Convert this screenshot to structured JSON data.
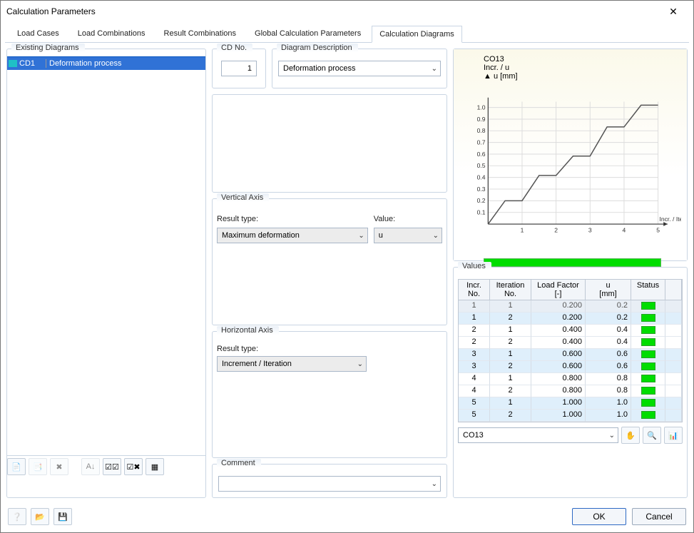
{
  "window": {
    "title": "Calculation Parameters"
  },
  "tabs": {
    "items": [
      "Load Cases",
      "Load Combinations",
      "Result Combinations",
      "Global Calculation Parameters",
      "Calculation Diagrams"
    ],
    "active_index": 4
  },
  "left": {
    "legend": "Existing Diagrams",
    "rows": [
      {
        "id": "CD1",
        "name": "Deformation process",
        "swatch_color": "#1fc0c6"
      }
    ]
  },
  "cdno": {
    "legend": "CD No.",
    "value": "1"
  },
  "desc": {
    "legend": "Diagram Description",
    "value": "Deformation process"
  },
  "vaxis": {
    "legend": "Vertical Axis",
    "result_type_label": "Result type:",
    "value_label": "Value:",
    "result_type": "Maximum deformation",
    "value": "u"
  },
  "haxis": {
    "legend": "Horizontal Axis",
    "result_type_label": "Result type:",
    "result_type": "Increment / Iteration"
  },
  "comment": {
    "legend": "Comment",
    "value": ""
  },
  "chart": {
    "type": "line-step",
    "title": "CO13",
    "subtitle": "Incr. / u",
    "y_axis_label": "u [mm]",
    "x_axis_label": "Incr. / Iter.",
    "xlim": [
      0,
      5
    ],
    "xtick_step": 1,
    "ylim": [
      0,
      1.05
    ],
    "yticks": [
      0.1,
      0.2,
      0.3,
      0.4,
      0.5,
      0.6,
      0.7,
      0.8,
      0.9,
      1.0
    ],
    "grid_color": "#dcdcdc",
    "axis_color": "#333333",
    "line_color": "#555555",
    "background_gradient": [
      "#fbf9ea",
      "#ffffff"
    ],
    "plateaus": [
      {
        "incr": 1,
        "u": 0.2
      },
      {
        "incr": 2,
        "u": 0.417
      },
      {
        "incr": 3,
        "u": 0.583
      },
      {
        "incr": 4,
        "u": 0.833
      },
      {
        "incr": 5,
        "u": 1.02
      }
    ],
    "progress_color": "#00dd00"
  },
  "values": {
    "legend": "Values",
    "columns": [
      "Incr.\nNo.",
      "Iteration\nNo.",
      "Load Factor\n[-]",
      "u\n[mm]",
      "Status"
    ],
    "rows": [
      {
        "incr": 1,
        "iter": 1,
        "lf": "0.200",
        "u": "0.2",
        "status": "ok",
        "shade": "gray"
      },
      {
        "incr": 1,
        "iter": 2,
        "lf": "0.200",
        "u": "0.2",
        "status": "ok",
        "shade": "blue"
      },
      {
        "incr": 2,
        "iter": 1,
        "lf": "0.400",
        "u": "0.4",
        "status": "ok",
        "shade": "none"
      },
      {
        "incr": 2,
        "iter": 2,
        "lf": "0.400",
        "u": "0.4",
        "status": "ok",
        "shade": "none"
      },
      {
        "incr": 3,
        "iter": 1,
        "lf": "0.600",
        "u": "0.6",
        "status": "ok",
        "shade": "blue"
      },
      {
        "incr": 3,
        "iter": 2,
        "lf": "0.600",
        "u": "0.6",
        "status": "ok",
        "shade": "blue"
      },
      {
        "incr": 4,
        "iter": 1,
        "lf": "0.800",
        "u": "0.8",
        "status": "ok",
        "shade": "none"
      },
      {
        "incr": 4,
        "iter": 2,
        "lf": "0.800",
        "u": "0.8",
        "status": "ok",
        "shade": "none"
      },
      {
        "incr": 5,
        "iter": 1,
        "lf": "1.000",
        "u": "1.0",
        "status": "ok",
        "shade": "blue"
      },
      {
        "incr": 5,
        "iter": 2,
        "lf": "1.000",
        "u": "1.0",
        "status": "ok",
        "shade": "blue"
      }
    ],
    "selector_value": "CO13"
  },
  "buttons": {
    "ok": "OK",
    "cancel": "Cancel"
  }
}
